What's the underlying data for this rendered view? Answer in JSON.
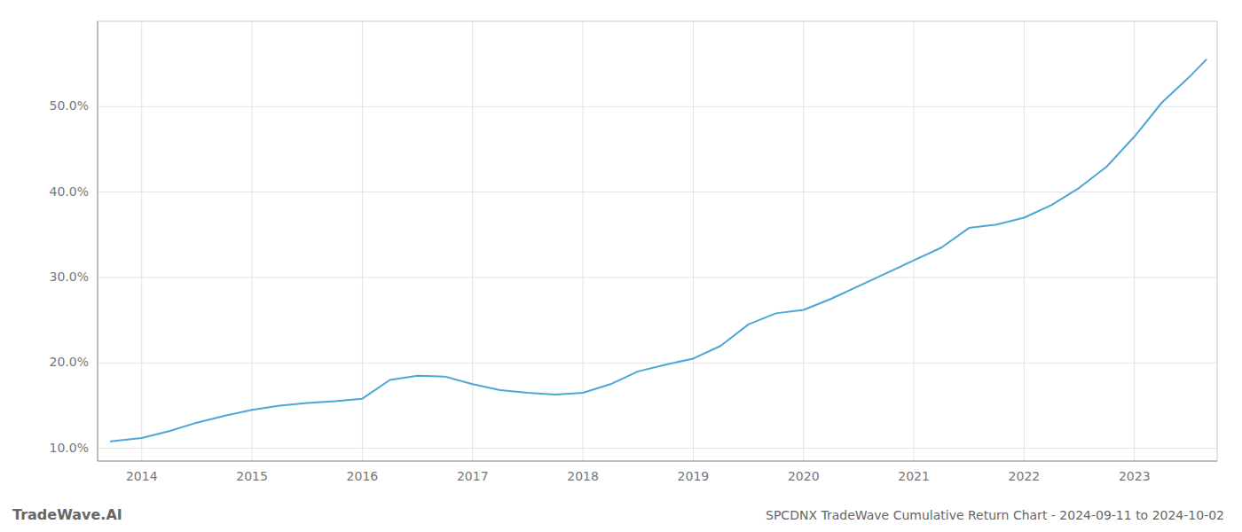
{
  "chart_data": {
    "type": "line",
    "title": "SPCDNX TradeWave Cumulative Return Chart - 2024-09-11 to 2024-10-02",
    "annotations": [
      "TradeWave.AI"
    ],
    "x": [
      2013.72,
      2014.0,
      2014.25,
      2014.5,
      2014.75,
      2015.0,
      2015.25,
      2015.5,
      2015.75,
      2016.0,
      2016.25,
      2016.5,
      2016.75,
      2017.0,
      2017.25,
      2017.5,
      2017.75,
      2018.0,
      2018.25,
      2018.5,
      2018.75,
      2019.0,
      2019.25,
      2019.5,
      2019.75,
      2020.0,
      2020.25,
      2020.5,
      2020.75,
      2021.0,
      2021.25,
      2021.5,
      2021.75,
      2022.0,
      2022.25,
      2022.5,
      2022.75,
      2023.0,
      2023.25,
      2023.5,
      2023.65
    ],
    "values": [
      10.8,
      11.2,
      12.0,
      13.0,
      13.8,
      14.5,
      15.0,
      15.3,
      15.5,
      15.8,
      18.0,
      18.5,
      18.4,
      17.5,
      16.8,
      16.5,
      16.3,
      16.5,
      17.5,
      19.0,
      19.8,
      20.5,
      22.0,
      24.5,
      25.8,
      26.2,
      27.5,
      29.0,
      30.5,
      32.0,
      33.5,
      35.8,
      36.2,
      37.0,
      38.5,
      40.5,
      43.0,
      46.5,
      50.5,
      53.5,
      55.5
    ],
    "color": "#4da6d8",
    "xlim": [
      2013.6,
      2023.75
    ],
    "ylim": [
      8.5,
      60.0
    ],
    "xticks": [
      2014,
      2015,
      2016,
      2017,
      2018,
      2019,
      2020,
      2021,
      2022,
      2023
    ],
    "yticks": [
      {
        "value": 10.0,
        "label": "10.0%"
      },
      {
        "value": 20.0,
        "label": "20.0%"
      },
      {
        "value": 30.0,
        "label": "30.0%"
      },
      {
        "value": 40.0,
        "label": "40.0%"
      },
      {
        "value": 50.0,
        "label": "50.0%"
      }
    ],
    "grid": true
  }
}
